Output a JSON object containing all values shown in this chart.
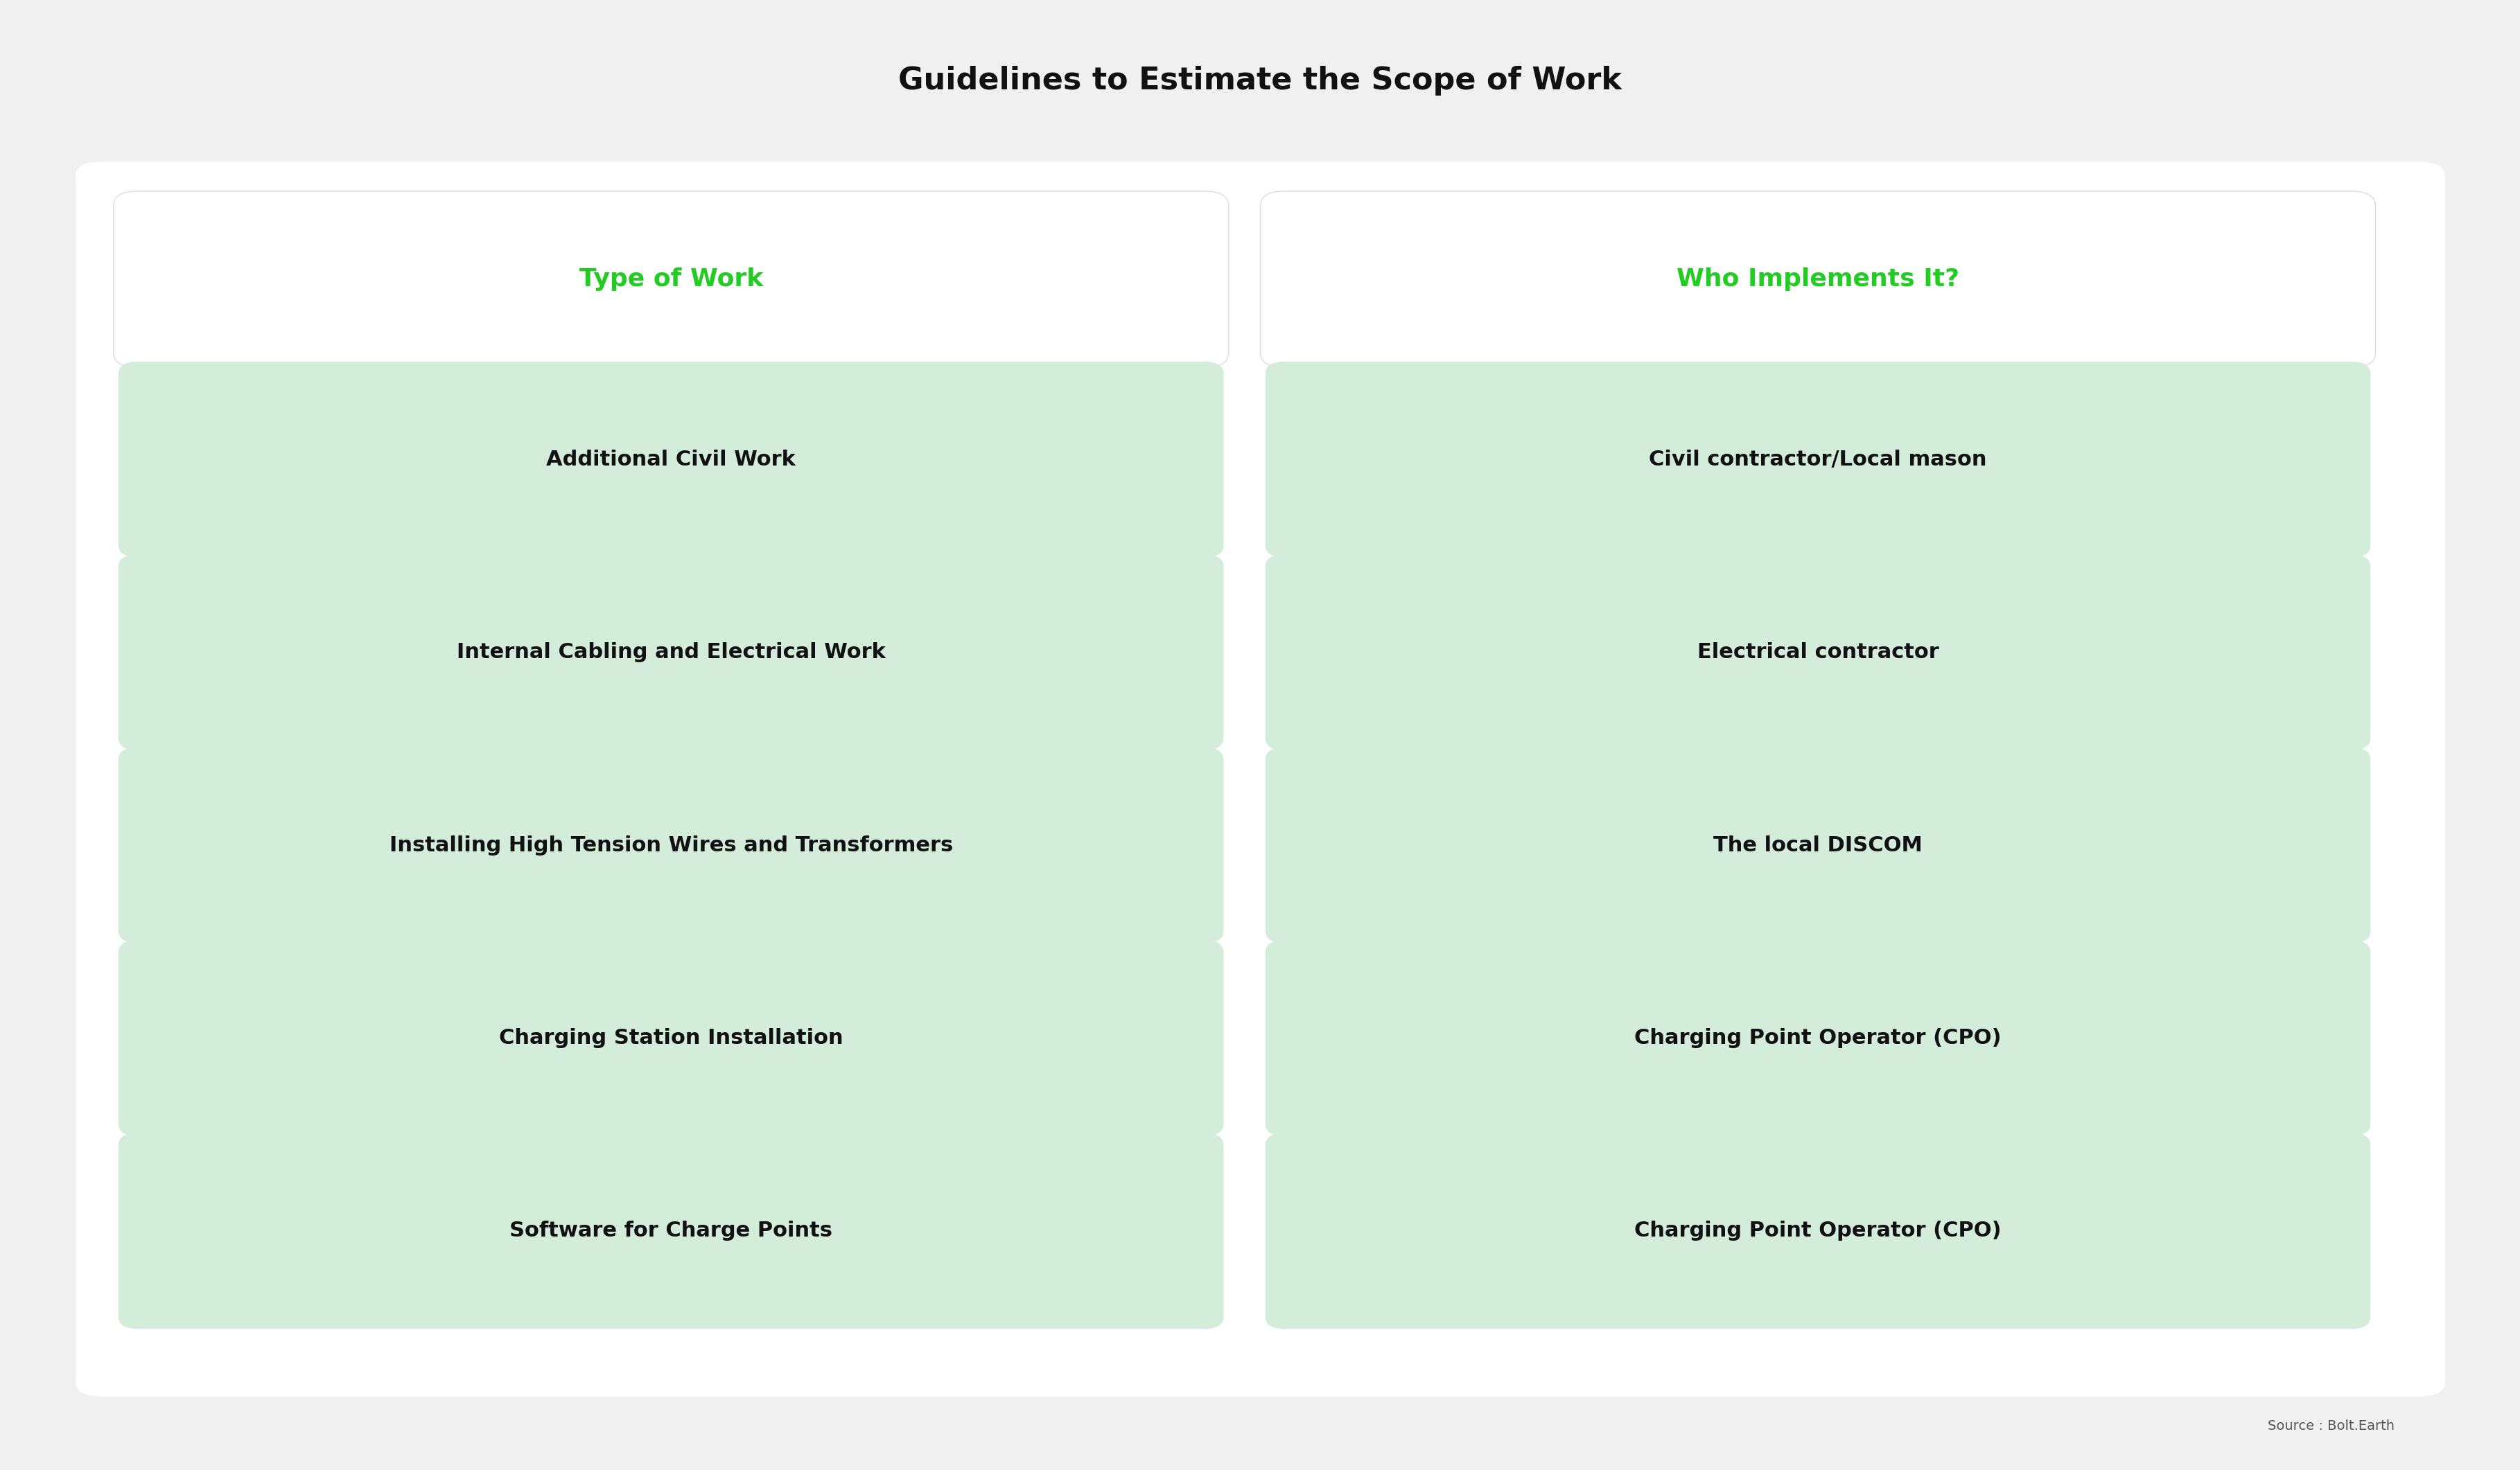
{
  "title": "Guidelines to Estimate the Scope of Work",
  "title_fontsize": 32,
  "title_fontweight": "bold",
  "background_color": "#f0f0f0",
  "outer_box_color": "#ffffff",
  "cell_bg_color": "#d4edda",
  "header_text_color": "#22cc22",
  "body_text_color": "#111111",
  "source_text": "Source : Bolt.Earth",
  "col1_header": "Type of Work",
  "col2_header": "Who Implements It?",
  "rows": [
    [
      "Additional Civil Work",
      "Civil contractor/Local mason"
    ],
    [
      "Internal Cabling and Electrical Work",
      "Electrical contractor"
    ],
    [
      "Installing High Tension Wires and Transformers",
      "The local DISCOM"
    ],
    [
      "Charging Station Installation",
      "Charging Point Operator (CPO)"
    ],
    [
      "Software for Charge Points",
      "Charging Point Operator (CPO)"
    ]
  ],
  "header_fontsize": 26,
  "cell_fontsize": 22
}
